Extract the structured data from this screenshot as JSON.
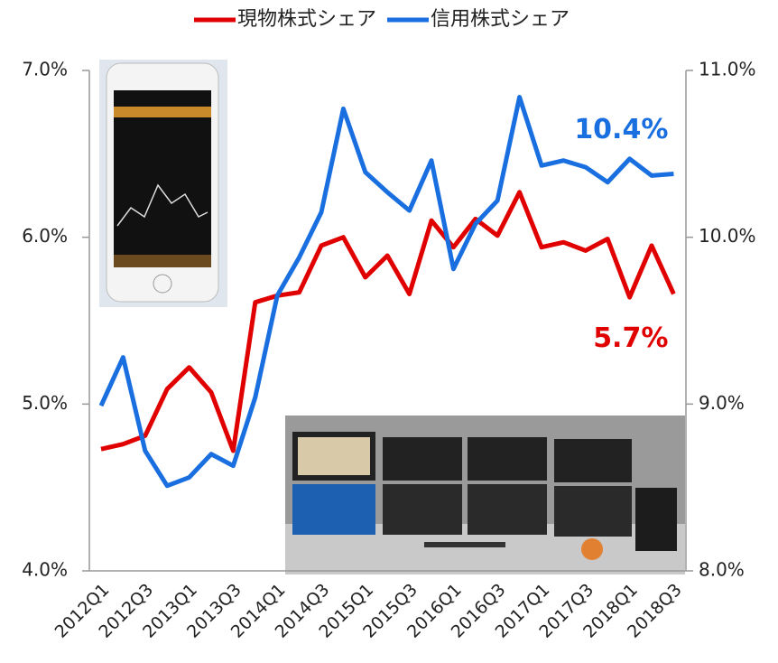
{
  "chart_data": {
    "type": "line",
    "categories": [
      "2012Q1",
      null,
      "2012Q3",
      null,
      "2013Q1",
      null,
      "2013Q3",
      null,
      "2014Q1",
      null,
      "2014Q3",
      null,
      "2015Q1",
      null,
      "2015Q3",
      null,
      "2016Q1",
      null,
      "2016Q3",
      null,
      "2017Q1",
      null,
      "2017Q3",
      null,
      "2018Q1",
      null,
      "2018Q3"
    ],
    "series": [
      {
        "name": "現物株式シェア",
        "color": "#e00000",
        "values": [
          4.73,
          4.76,
          4.81,
          5.09,
          5.22,
          5.07,
          4.72,
          5.61,
          5.65,
          5.67,
          5.95,
          6.0,
          5.76,
          5.89,
          5.66,
          6.1,
          5.94,
          6.11,
          6.01,
          6.27,
          5.94,
          5.97,
          5.92,
          5.99,
          5.64,
          5.95,
          5.66
        ],
        "value_labels": [
          null,
          null,
          null,
          null,
          null,
          null,
          null,
          null,
          null,
          null,
          null,
          null,
          null,
          null,
          null,
          null,
          null,
          null,
          null,
          null,
          null,
          null,
          null,
          null,
          null,
          null,
          "5.7%"
        ]
      },
      {
        "name": "信用株式シェア",
        "color": "#1a6fe0",
        "axis": "y2",
        "values": [
          8.99,
          9.28,
          8.72,
          8.51,
          8.56,
          8.7,
          8.63,
          9.04,
          9.65,
          9.88,
          10.15,
          10.77,
          10.39,
          10.27,
          10.16,
          10.46,
          9.81,
          10.08,
          10.22,
          10.84,
          10.43,
          10.46,
          10.42,
          10.33,
          10.47,
          10.37,
          10.38
        ],
        "value_labels": [
          null,
          null,
          null,
          null,
          null,
          null,
          null,
          null,
          null,
          null,
          null,
          null,
          null,
          null,
          null,
          null,
          null,
          null,
          null,
          null,
          null,
          null,
          null,
          null,
          null,
          null,
          "10.4%"
        ]
      }
    ],
    "ylim": [
      4,
      7
    ],
    "yticks": [
      {
        "value": 4,
        "label": "4.0%"
      },
      {
        "value": 5,
        "label": "5.0%"
      },
      {
        "value": 6,
        "label": "6.0%"
      },
      {
        "value": 7,
        "label": "7.0%"
      }
    ],
    "y2lim": [
      8,
      11
    ],
    "y2ticks": [
      {
        "value": 8,
        "label": "8.0%"
      },
      {
        "value": 9,
        "label": "9.0%"
      },
      {
        "value": 10,
        "label": "10.0%"
      },
      {
        "value": 11,
        "label": "11.0%"
      }
    ],
    "legend": "top",
    "grid": false
  }
}
